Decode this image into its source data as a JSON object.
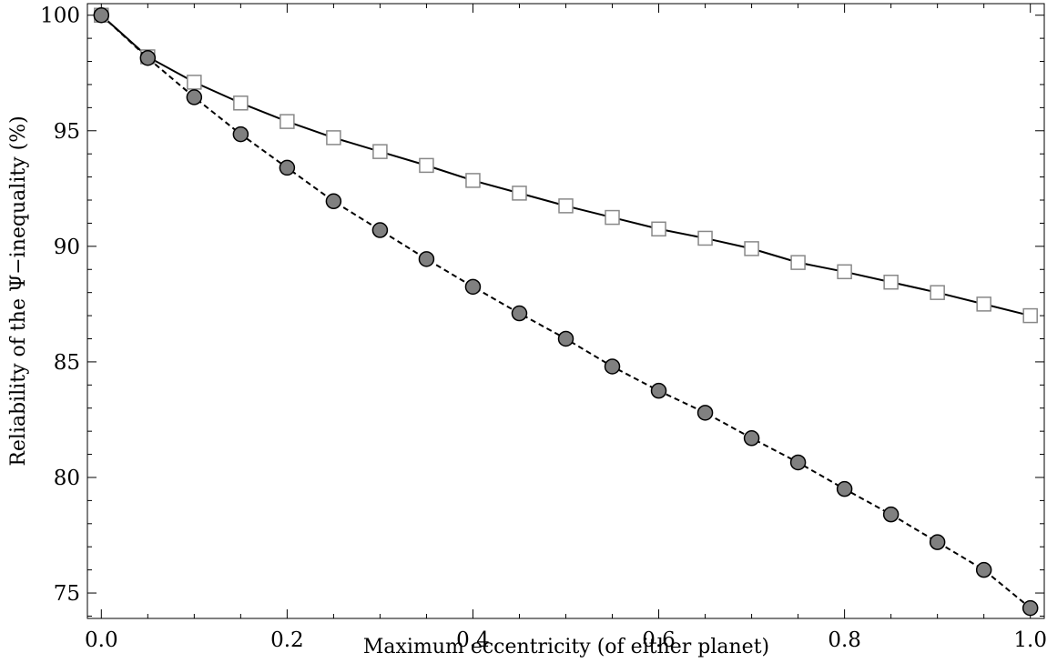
{
  "chart_data": {
    "type": "line",
    "xlabel": "Maximum eccentricity (of either planet)",
    "ylabel": "Reliability of the Ψ−inequality (%)",
    "xlim": [
      -0.015,
      1.015
    ],
    "ylim": [
      73.9,
      100.5
    ],
    "x_ticks": [
      "0.0",
      "0.2",
      "0.4",
      "0.6",
      "0.8",
      "1.0"
    ],
    "y_ticks": [
      "75",
      "80",
      "85",
      "90",
      "95",
      "100"
    ],
    "grid": false,
    "x": [
      0.0,
      0.05,
      0.1,
      0.15,
      0.2,
      0.25,
      0.3,
      0.35,
      0.4,
      0.45,
      0.5,
      0.55,
      0.6,
      0.65,
      0.7,
      0.75,
      0.8,
      0.85,
      0.9,
      0.95,
      1.0
    ],
    "series": [
      {
        "marker": "square",
        "line_style": "solid",
        "line_color": "#000000",
        "marker_fill": "#ffffff",
        "marker_stroke": "#888888",
        "values": [
          100.0,
          98.2,
          97.1,
          96.2,
          95.4,
          94.7,
          94.1,
          93.5,
          92.85,
          92.3,
          91.75,
          91.25,
          90.75,
          90.35,
          89.9,
          89.3,
          88.9,
          88.45,
          88.0,
          87.5,
          87.0
        ]
      },
      {
        "marker": "circle",
        "line_style": "dashed",
        "line_color": "#000000",
        "marker_fill": "#808080",
        "marker_stroke": "#000000",
        "values": [
          100.0,
          98.15,
          96.45,
          94.85,
          93.4,
          91.95,
          90.7,
          89.45,
          88.25,
          87.1,
          86.0,
          84.8,
          83.75,
          82.8,
          81.7,
          80.65,
          79.5,
          78.4,
          77.2,
          76.0,
          74.35
        ]
      }
    ]
  }
}
